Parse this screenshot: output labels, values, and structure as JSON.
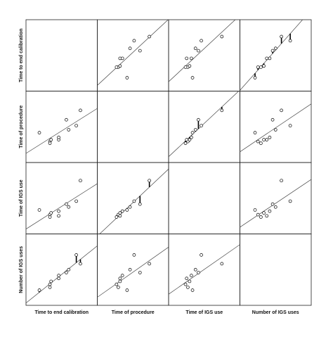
{
  "chart_data": {
    "type": "scatter_matrix",
    "series": [
      {
        "name": "Time to end calibration",
        "values": [
          12,
          30,
          30,
          32,
          45,
          45,
          58,
          62,
          82,
          75
        ]
      },
      {
        "name": "Time of procedure",
        "values": [
          40,
          25,
          22,
          28,
          28,
          32,
          62,
          45,
          78,
          52
        ]
      },
      {
        "name": "Time of IGS use",
        "values": [
          30,
          22,
          18,
          25,
          20,
          28,
          40,
          35,
          80,
          45
        ]
      },
      {
        "name": "Number of IGS uses",
        "values": [
          15,
          20,
          25,
          30,
          35,
          40,
          45,
          50,
          60,
          75
        ]
      }
    ],
    "xlim": [
      0,
      100
    ],
    "ylim": [
      0,
      100
    ],
    "regression_line": true,
    "residual_panels": [
      [
        0,
        3
      ],
      [
        1,
        2
      ],
      [
        2,
        1
      ],
      [
        3,
        0
      ]
    ],
    "color": "#000000"
  }
}
